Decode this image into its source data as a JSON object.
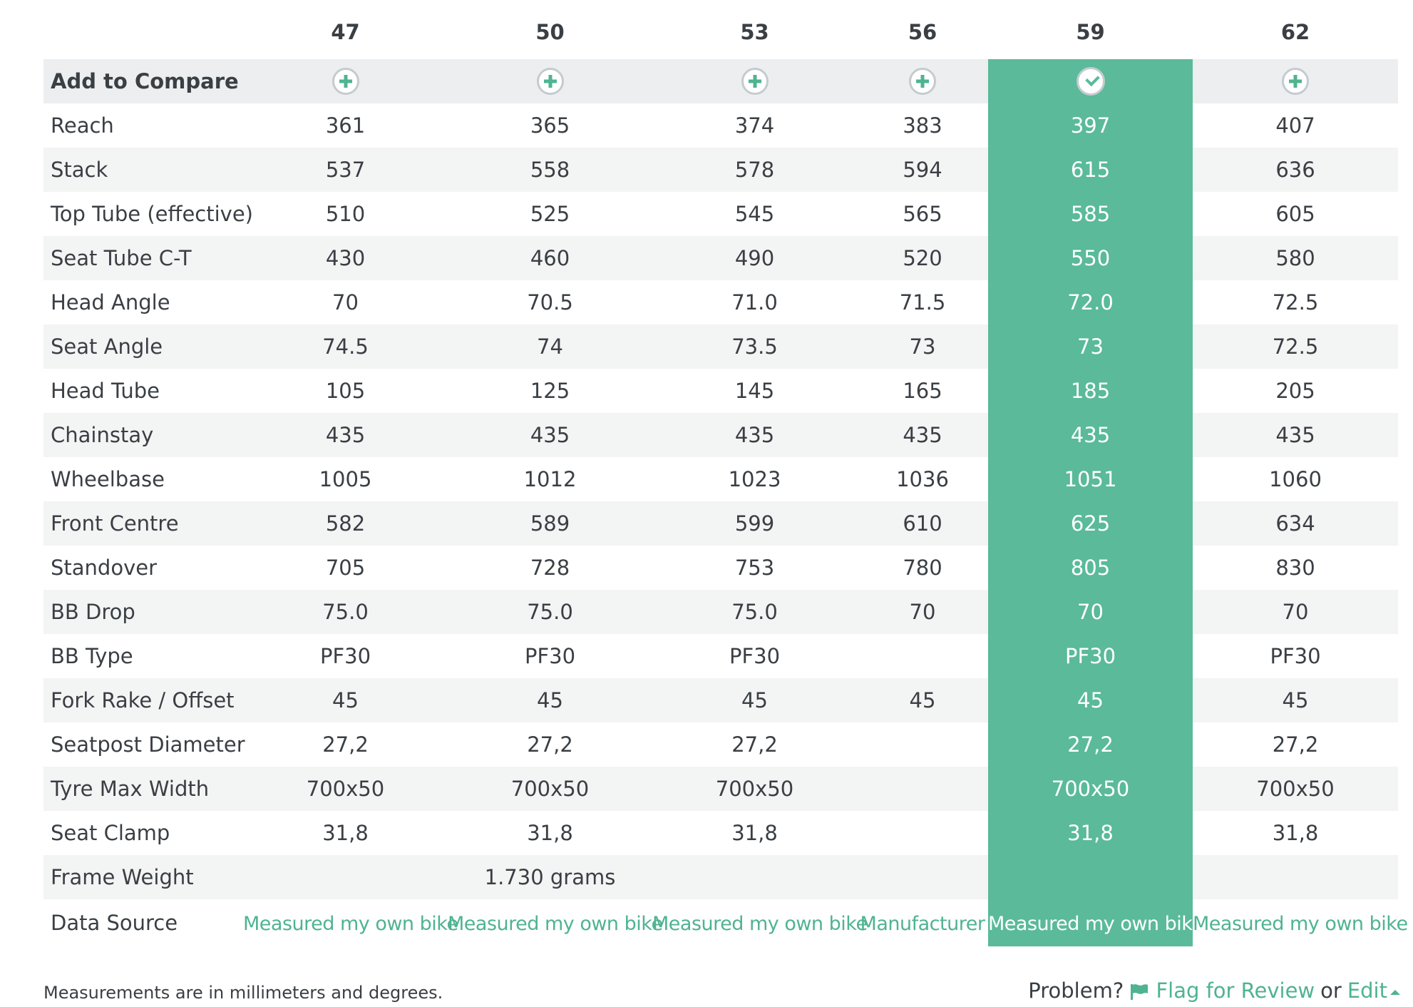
{
  "sizes": [
    "47",
    "50",
    "53",
    "56",
    "59",
    "62"
  ],
  "compare": {
    "label": "Add to Compare",
    "states": [
      "add",
      "add",
      "add",
      "add",
      "selected",
      "add"
    ]
  },
  "rows": [
    {
      "label": "Reach",
      "values": [
        "361",
        "365",
        "374",
        "383",
        "397",
        "407"
      ]
    },
    {
      "label": "Stack",
      "values": [
        "537",
        "558",
        "578",
        "594",
        "615",
        "636"
      ]
    },
    {
      "label": "Top Tube (effective)",
      "values": [
        "510",
        "525",
        "545",
        "565",
        "585",
        "605"
      ]
    },
    {
      "label": "Seat Tube C-T",
      "values": [
        "430",
        "460",
        "490",
        "520",
        "550",
        "580"
      ]
    },
    {
      "label": "Head Angle",
      "values": [
        "70",
        "70.5",
        "71.0",
        "71.5",
        "72.0",
        "72.5"
      ]
    },
    {
      "label": "Seat Angle",
      "values": [
        "74.5",
        "74",
        "73.5",
        "73",
        "73",
        "72.5"
      ]
    },
    {
      "label": "Head Tube",
      "values": [
        "105",
        "125",
        "145",
        "165",
        "185",
        "205"
      ]
    },
    {
      "label": "Chainstay",
      "values": [
        "435",
        "435",
        "435",
        "435",
        "435",
        "435"
      ]
    },
    {
      "label": "Wheelbase",
      "values": [
        "1005",
        "1012",
        "1023",
        "1036",
        "1051",
        "1060"
      ]
    },
    {
      "label": "Front Centre",
      "values": [
        "582",
        "589",
        "599",
        "610",
        "625",
        "634"
      ]
    },
    {
      "label": "Standover",
      "values": [
        "705",
        "728",
        "753",
        "780",
        "805",
        "830"
      ]
    },
    {
      "label": "BB Drop",
      "values": [
        "75.0",
        "75.0",
        "75.0",
        "70",
        "70",
        "70"
      ]
    },
    {
      "label": "BB Type",
      "values": [
        "PF30",
        "PF30",
        "PF30",
        "",
        "PF30",
        "PF30"
      ]
    },
    {
      "label": "Fork Rake / Offset",
      "values": [
        "45",
        "45",
        "45",
        "45",
        "45",
        "45"
      ]
    },
    {
      "label": "Seatpost Diameter",
      "values": [
        "27,2",
        "27,2",
        "27,2",
        "",
        "27,2",
        "27,2"
      ]
    },
    {
      "label": "Tyre Max Width",
      "values": [
        "700x50",
        "700x50",
        "700x50",
        "",
        "700x50",
        "700x50"
      ]
    },
    {
      "label": "Seat Clamp",
      "values": [
        "31,8",
        "31,8",
        "31,8",
        "",
        "31,8",
        "31,8"
      ]
    },
    {
      "label": "Frame Weight",
      "values": [
        "",
        "1.730 grams",
        "",
        "",
        "",
        ""
      ]
    }
  ],
  "data_source": {
    "label": "Data Source",
    "values": [
      "Measured my own bike",
      "Measured my own bike",
      "Measured my own bike",
      "Manufacturer",
      "Measured my own bike",
      "Measured my own bike"
    ]
  },
  "footer": {
    "note": "Measurements are in millimeters and degrees.",
    "problem": "Problem?",
    "flag_label": "Flag for Review",
    "or": "or",
    "edit_label": "Edit"
  },
  "colors": {
    "accent": "#5aba9a",
    "link": "#4fb391",
    "text": "#3a3f44"
  },
  "highlight_column": 4
}
